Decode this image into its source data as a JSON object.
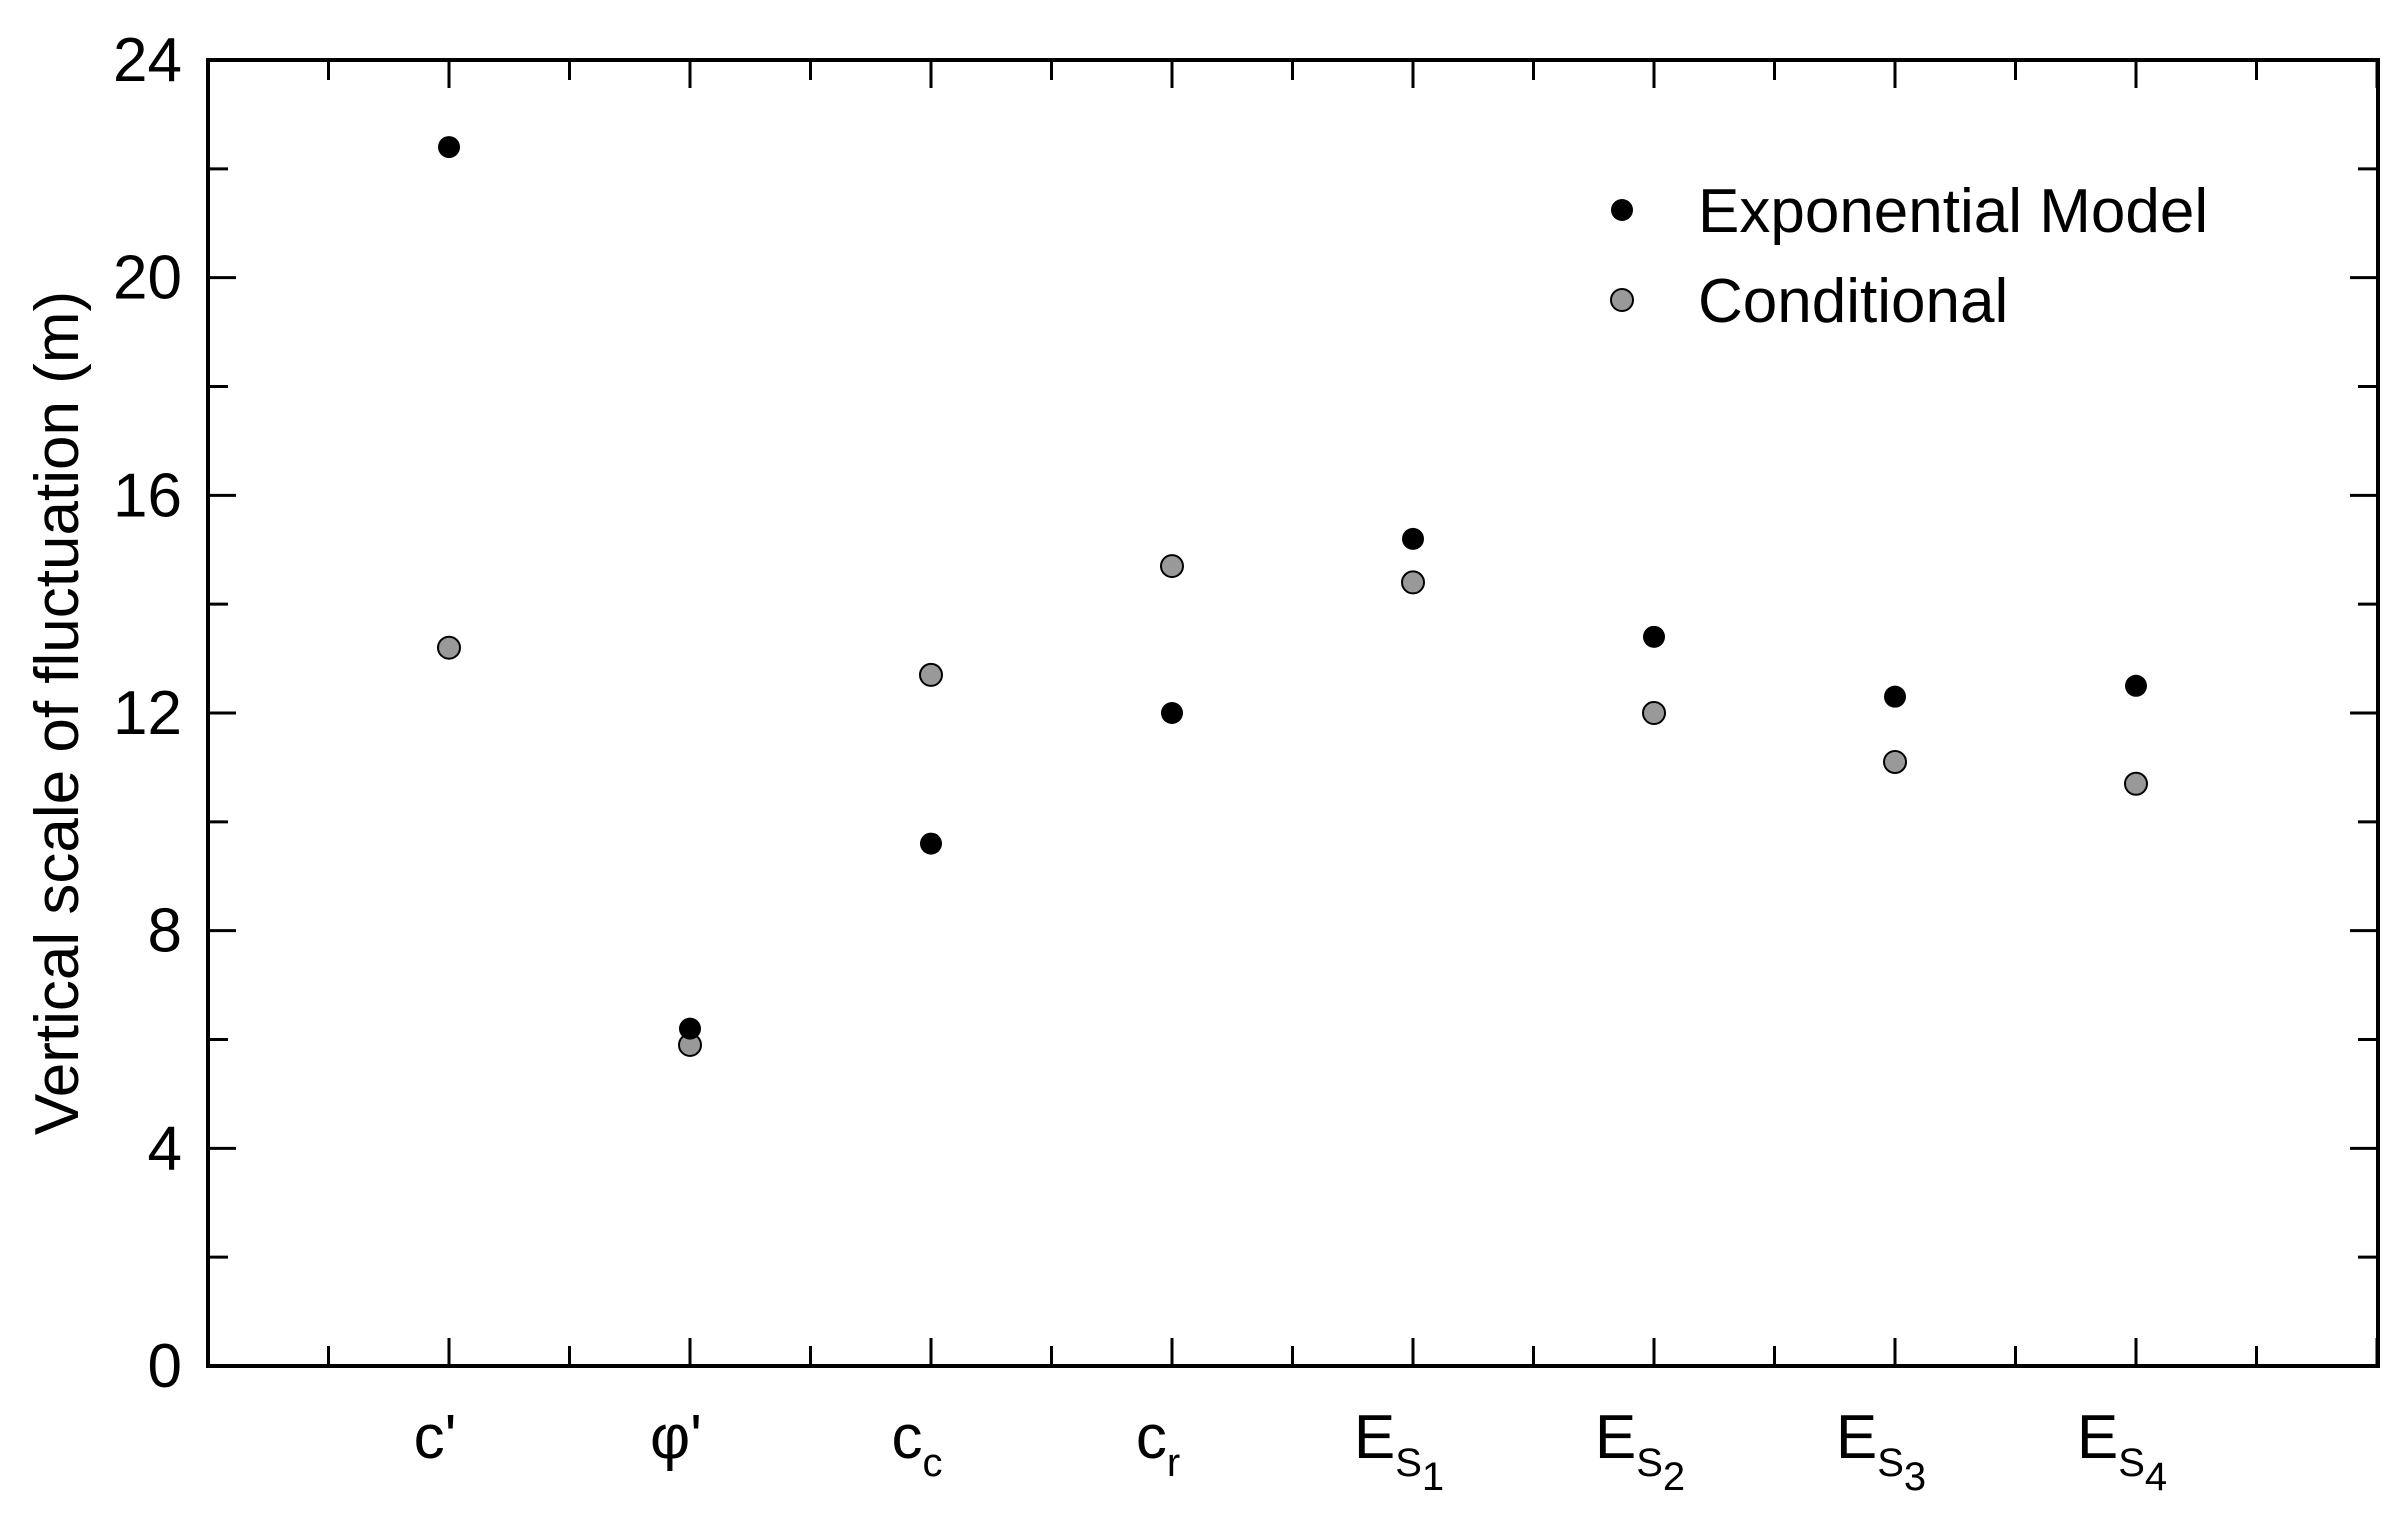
{
  "chart_data": {
    "type": "scatter",
    "ylabel": "Vertical scale of fluctuation (m)",
    "ylim": [
      0,
      24
    ],
    "yticks": [
      0,
      4,
      8,
      12,
      16,
      20,
      24
    ],
    "categories": [
      {
        "base": "c'",
        "sub": "",
        "subsub": ""
      },
      {
        "base": "φ'",
        "sub": "",
        "subsub": ""
      },
      {
        "base": "c",
        "sub": "c",
        "subsub": ""
      },
      {
        "base": "c",
        "sub": "r",
        "subsub": ""
      },
      {
        "base": "E",
        "sub": "S",
        "subsub": "1"
      },
      {
        "base": "E",
        "sub": "S",
        "subsub": "2"
      },
      {
        "base": "E",
        "sub": "S",
        "subsub": "3"
      },
      {
        "base": "E",
        "sub": "S",
        "subsub": "4"
      }
    ],
    "series": [
      {
        "name": "Exponential Model",
        "color": "#000000",
        "values": [
          22.4,
          6.2,
          9.6,
          12.0,
          15.2,
          13.4,
          12.3,
          12.5
        ]
      },
      {
        "name": "Conditional",
        "color": "#999999",
        "values": [
          13.2,
          5.9,
          12.7,
          14.7,
          14.4,
          12.0,
          11.1,
          10.7
        ]
      }
    ],
    "grid": false,
    "legend_position": "top-right"
  }
}
